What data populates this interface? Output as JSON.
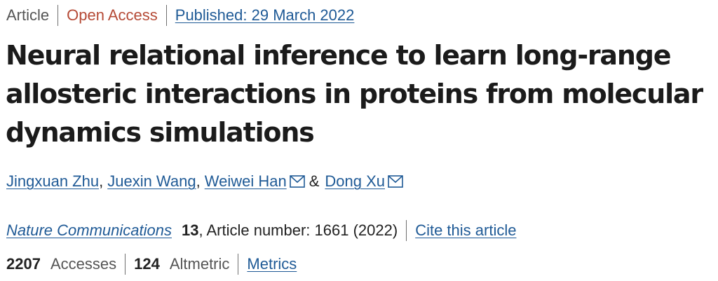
{
  "meta": {
    "type": "Article",
    "access": "Open Access",
    "published": "Published: 29 March 2022"
  },
  "title": "Neural relational inference to learn long-range allosteric interactions in proteins from molecular dynamics simulations",
  "authors": {
    "list": [
      {
        "name": "Jingxuan Zhu",
        "separator": ",",
        "email": false
      },
      {
        "name": "Juexin Wang",
        "separator": ",",
        "email": false
      },
      {
        "name": "Weiwei Han",
        "separator": "",
        "email": true
      },
      {
        "name": "Dong Xu",
        "separator": "",
        "email": true
      }
    ],
    "conjunction": "&"
  },
  "citation": {
    "journal": "Nature Communications",
    "volume": "13",
    "article_text": ", Article number: 1661 (2022)",
    "cite_link": "Cite this article"
  },
  "stats": {
    "accesses_count": "2207",
    "accesses_label": "Accesses",
    "altmetric_count": "124",
    "altmetric_label": "Altmetric",
    "metrics_link": "Metrics"
  },
  "colors": {
    "link": "#1f5a96",
    "open_access": "#b54a36",
    "text": "#222222",
    "muted": "#555555"
  },
  "icons": {
    "email": "envelope-icon"
  }
}
